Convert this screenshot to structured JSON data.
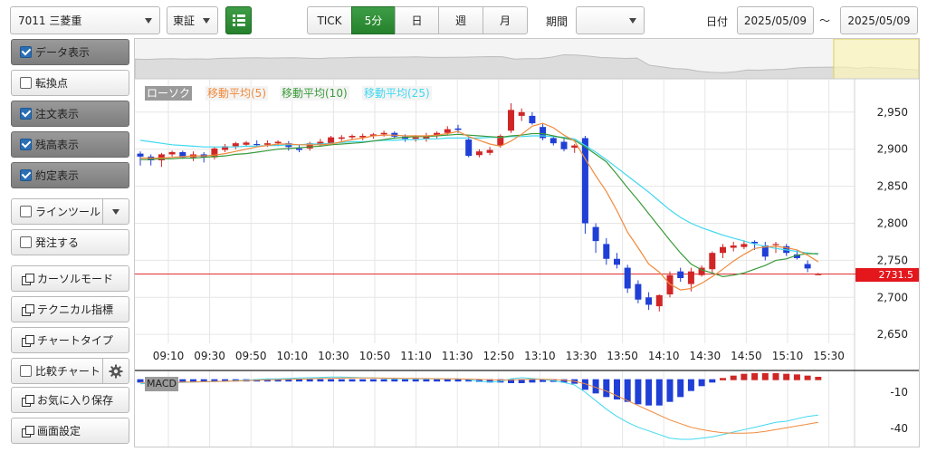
{
  "toolbar": {
    "symbol": "7011 三菱重",
    "market": "東証",
    "timeframes": [
      "TICK",
      "5分",
      "日",
      "週",
      "月"
    ],
    "active_timeframe": "5分",
    "period_label": "期間",
    "period_value": "",
    "date_label": "日付",
    "date_from": "2025/05/09",
    "date_sep": "～",
    "date_to": "2025/05/09"
  },
  "sidebar": {
    "items": [
      {
        "label": "データ表示",
        "checked": true
      },
      {
        "label": "転換点",
        "checked": false
      },
      {
        "label": "注文表示",
        "checked": true
      },
      {
        "label": "残高表示",
        "checked": true
      },
      {
        "label": "約定表示",
        "checked": true
      },
      {
        "label": "ラインツール",
        "checked": false
      },
      {
        "label": "発注する",
        "checked": false
      },
      {
        "label": "カーソルモード"
      },
      {
        "label": "テクニカル指標"
      },
      {
        "label": "チャートタイプ"
      },
      {
        "label": "比較チャート",
        "checked": false
      },
      {
        "label": "お気に入り保存"
      },
      {
        "label": "画面設定"
      }
    ]
  },
  "legend": {
    "candle": "ローソク",
    "ma5": "移動平均(5)",
    "ma10": "移動平均(10)",
    "ma25": "移動平均(25)",
    "macd": "MACD"
  },
  "colors": {
    "up": "#d02626",
    "down": "#1f3fd6",
    "ma5": "#f08a3c",
    "ma10": "#3a9a3a",
    "ma25": "#40d8f0",
    "price_line": "#e23030",
    "active_tab": "#2e8b35"
  },
  "chart_data": {
    "type": "candlestick",
    "y_ticks": [
      "2,950",
      "2,900",
      "2,850",
      "2,800",
      "2,750",
      "2,700",
      "2,650"
    ],
    "ylim": [
      2638,
      2995
    ],
    "x_ticks": [
      "09:10",
      "09:30",
      "09:50",
      "10:10",
      "10:30",
      "10:50",
      "11:10",
      "11:30",
      "12:50",
      "13:10",
      "13:30",
      "13:50",
      "14:10",
      "14:30",
      "14:50",
      "15:10",
      "15:30"
    ],
    "current_price_label": "2731.5",
    "current_price": 2731.5,
    "candles": [
      [
        2894,
        2897,
        2878,
        2890
      ],
      [
        2890,
        2893,
        2878,
        2885
      ],
      [
        2885,
        2895,
        2876,
        2893
      ],
      [
        2893,
        2898,
        2890,
        2896
      ],
      [
        2896,
        2898,
        2887,
        2889
      ],
      [
        2889,
        2897,
        2884,
        2893
      ],
      [
        2893,
        2896,
        2882,
        2889
      ],
      [
        2889,
        2903,
        2886,
        2901
      ],
      [
        2899,
        2907,
        2896,
        2904
      ],
      [
        2904,
        2910,
        2900,
        2908
      ],
      [
        2906,
        2911,
        2903,
        2909
      ],
      [
        2907,
        2912,
        2903,
        2906
      ],
      [
        2906,
        2912,
        2903,
        2908
      ],
      [
        2908,
        2912,
        2904,
        2910
      ],
      [
        2908,
        2911,
        2898,
        2903
      ],
      [
        2901,
        2906,
        2896,
        2899
      ],
      [
        2901,
        2910,
        2898,
        2908
      ],
      [
        2906,
        2914,
        2904,
        2910
      ],
      [
        2908,
        2918,
        2905,
        2916
      ],
      [
        2914,
        2919,
        2911,
        2916
      ],
      [
        2916,
        2920,
        2913,
        2918
      ],
      [
        2916,
        2921,
        2912,
        2918
      ],
      [
        2918,
        2922,
        2914,
        2920
      ],
      [
        2920,
        2925,
        2917,
        2922
      ],
      [
        2922,
        2924,
        2914,
        2917
      ],
      [
        2917,
        2920,
        2910,
        2914
      ],
      [
        2914,
        2919,
        2910,
        2916
      ],
      [
        2914,
        2922,
        2910,
        2918
      ],
      [
        2918,
        2924,
        2914,
        2922
      ],
      [
        2922,
        2931,
        2919,
        2927
      ],
      [
        2928,
        2933,
        2922,
        2926
      ],
      [
        2913,
        2917,
        2889,
        2891
      ],
      [
        2892,
        2900,
        2889,
        2897
      ],
      [
        2895,
        2903,
        2892,
        2899
      ],
      [
        2905,
        2920,
        2902,
        2918
      ],
      [
        2925,
        2962,
        2922,
        2953
      ],
      [
        2945,
        2955,
        2938,
        2950
      ],
      [
        2945,
        2950,
        2933,
        2935
      ],
      [
        2930,
        2934,
        2912,
        2915
      ],
      [
        2915,
        2918,
        2905,
        2908
      ],
      [
        2910,
        2914,
        2897,
        2900
      ],
      [
        2902,
        2907,
        2895,
        2905
      ],
      [
        2915,
        2918,
        2786,
        2800
      ],
      [
        2795,
        2800,
        2760,
        2776
      ],
      [
        2772,
        2780,
        2744,
        2752
      ],
      [
        2752,
        2760,
        2739,
        2744
      ],
      [
        2740,
        2744,
        2706,
        2712
      ],
      [
        2718,
        2723,
        2692,
        2697
      ],
      [
        2700,
        2707,
        2683,
        2690
      ],
      [
        2688,
        2704,
        2681,
        2703
      ],
      [
        2704,
        2735,
        2700,
        2730
      ],
      [
        2735,
        2740,
        2721,
        2726
      ],
      [
        2718,
        2740,
        2708,
        2735
      ],
      [
        2730,
        2743,
        2728,
        2740
      ],
      [
        2738,
        2762,
        2733,
        2760
      ],
      [
        2760,
        2772,
        2753,
        2768
      ],
      [
        2767,
        2775,
        2762,
        2770
      ],
      [
        2768,
        2777,
        2765,
        2772
      ],
      [
        2775,
        2777,
        2764,
        2773
      ],
      [
        2770,
        2775,
        2750,
        2755
      ],
      [
        2772,
        2775,
        2760,
        2772
      ],
      [
        2769,
        2772,
        2756,
        2760
      ],
      [
        2758,
        2764,
        2751,
        2753
      ],
      [
        2745,
        2750,
        2734,
        2739
      ],
      [
        2730,
        2733,
        2730,
        2731.5
      ]
    ],
    "ma5": [
      2888,
      2888,
      2888,
      2889,
      2890,
      2891,
      2891,
      2892,
      2894,
      2897,
      2900,
      2903,
      2905,
      2907,
      2907,
      2906,
      2906,
      2906,
      2907,
      2910,
      2913,
      2915,
      2918,
      2919,
      2919,
      2918,
      2918,
      2918,
      2919,
      2921,
      2924,
      2917,
      2912,
      2907,
      2904,
      2911,
      2920,
      2931,
      2935,
      2929,
      2919,
      2911,
      2887,
      2864,
      2843,
      2817,
      2788,
      2767,
      2745,
      2734,
      2718,
      2710,
      2712,
      2719,
      2728,
      2738,
      2749,
      2758,
      2766,
      2768,
      2769,
      2767,
      2764,
      2757,
      2748
    ],
    "ma10": [
      2886,
      2886,
      2887,
      2887,
      2888,
      2888,
      2889,
      2890,
      2891,
      2893,
      2894,
      2896,
      2898,
      2900,
      2901,
      2902,
      2903,
      2904,
      2906,
      2907,
      2908,
      2909,
      2911,
      2913,
      2915,
      2916,
      2917,
      2917,
      2918,
      2919,
      2920,
      2919,
      2918,
      2917,
      2916,
      2918,
      2919,
      2921,
      2921,
      2918,
      2915,
      2912,
      2903,
      2893,
      2883,
      2866,
      2848,
      2831,
      2813,
      2795,
      2777,
      2760,
      2745,
      2737,
      2733,
      2728,
      2730,
      2733,
      2738,
      2743,
      2750,
      2752,
      2757,
      2759,
      2759
    ],
    "ma25": [
      2912,
      2910,
      2908,
      2906,
      2905,
      2904,
      2903,
      2903,
      2903,
      2903,
      2904,
      2904,
      2905,
      2905,
      2906,
      2906,
      2907,
      2907,
      2908,
      2909,
      2910,
      2910,
      2911,
      2912,
      2912,
      2913,
      2913,
      2914,
      2914,
      2915,
      2915,
      2915,
      2915,
      2916,
      2916,
      2917,
      2917,
      2918,
      2918,
      2917,
      2916,
      2914,
      2905,
      2896,
      2886,
      2875,
      2864,
      2853,
      2842,
      2830,
      2818,
      2808,
      2800,
      2794,
      2789,
      2784,
      2780,
      2776,
      2772,
      2769,
      2766,
      2764,
      2762,
      2760,
      2758
    ],
    "macd": {
      "y_ticks": [
        "-10",
        "-40"
      ],
      "ylim": [
        -55,
        8
      ],
      "histogram": [
        -2,
        -2,
        -2,
        -2,
        -1.5,
        -1.5,
        -1.5,
        -1,
        -1,
        -0.8,
        -0.6,
        -0.5,
        -0.5,
        -0.3,
        -0.3,
        -0.3,
        -0.3,
        -0.2,
        -0.2,
        -0.2,
        -0.2,
        -0.2,
        -0.2,
        -0.2,
        -0.2,
        -0.2,
        -0.2,
        -0.2,
        -0.2,
        -0.2,
        -0.3,
        -1,
        -1.5,
        -2,
        -2,
        -2.5,
        -2.5,
        -2,
        -1.5,
        -1.5,
        -2,
        -3,
        -8,
        -11,
        -14,
        -16,
        -18,
        -20,
        -21,
        -21,
        -18,
        -14,
        -9,
        -5,
        -2,
        1,
        3,
        4.5,
        5,
        5,
        5,
        4.5,
        4,
        3,
        2
      ],
      "macd_line": [
        -3,
        -2.5,
        -2.3,
        -2,
        -1.8,
        -1.6,
        -1.4,
        -1.2,
        -1,
        -0.5,
        0,
        0.5,
        1,
        1,
        1.5,
        1.8,
        2,
        2.2,
        2.5,
        2.5,
        2.3,
        2,
        1.8,
        1.5,
        1.2,
        1,
        1,
        1,
        1,
        1,
        1,
        0.5,
        -1,
        -1.5,
        -1,
        1,
        2,
        1.5,
        0.5,
        -0.5,
        -2,
        -4,
        -10,
        -17,
        -24,
        -30,
        -35,
        -39,
        -42,
        -45,
        -48,
        -49,
        -49,
        -48,
        -47,
        -45,
        -43,
        -41,
        -39,
        -37,
        -35,
        -34,
        -32,
        -30,
        -29
      ],
      "signal_line": [
        -2,
        -2,
        -2,
        -1.8,
        -1.6,
        -1.5,
        -1.3,
        -1.1,
        -0.9,
        -0.7,
        -0.4,
        -0.1,
        0.2,
        0.4,
        0.7,
        0.9,
        1.1,
        1.3,
        1.5,
        1.7,
        1.8,
        1.8,
        1.8,
        1.7,
        1.6,
        1.5,
        1.4,
        1.3,
        1.2,
        1.1,
        1,
        0.9,
        0.6,
        0.3,
        0.1,
        0.2,
        0.5,
        0.7,
        0.7,
        0.5,
        0,
        -1,
        -3,
        -6,
        -9,
        -13,
        -17,
        -21,
        -25,
        -29,
        -33,
        -36,
        -39,
        -41,
        -42.5,
        -43.5,
        -44,
        -44,
        -43.5,
        -42.5,
        -41,
        -39.5,
        -38,
        -36.5,
        -35
      ]
    }
  }
}
